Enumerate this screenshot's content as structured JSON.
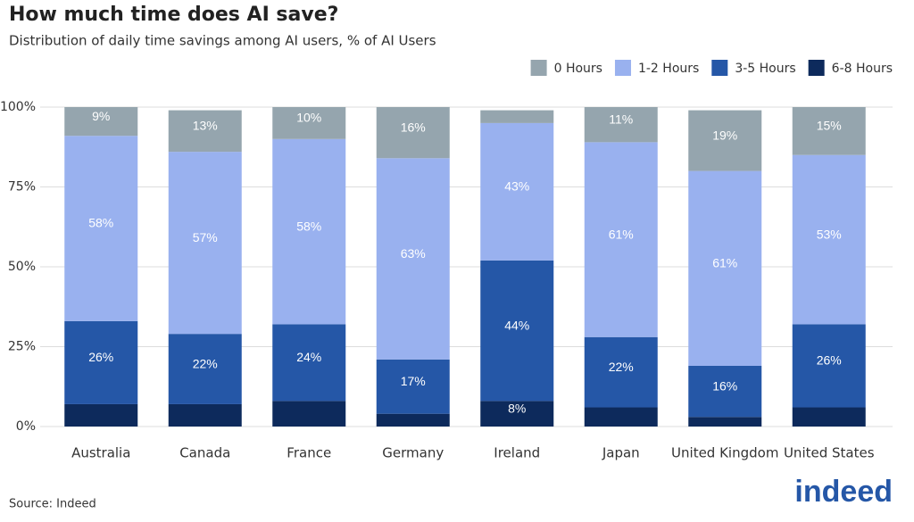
{
  "chart_data": {
    "type": "stacked-bar",
    "title": "How much time does AI save?",
    "subtitle": "Distribution of daily time savings among AI users, % of AI Users",
    "source": "Source: Indeed",
    "logo": "indeed",
    "categories": [
      "Australia",
      "Canada",
      "France",
      "Germany",
      "Ireland",
      "Japan",
      "United Kingdom",
      "United States"
    ],
    "series": [
      {
        "name": "6-8 Hours",
        "color": "#0d2a5c",
        "values": [
          7,
          7,
          8,
          4,
          8,
          6,
          3,
          6
        ],
        "value_labels": [
          null,
          null,
          null,
          null,
          "8%",
          null,
          null,
          null
        ]
      },
      {
        "name": "3-5 Hours",
        "color": "#2557a7",
        "values": [
          26,
          22,
          24,
          17,
          44,
          22,
          16,
          26
        ],
        "value_labels": [
          "26%",
          "22%",
          "24%",
          "17%",
          "44%",
          "22%",
          "16%",
          "26%"
        ]
      },
      {
        "name": "1-2 Hours",
        "color": "#99b1ef",
        "values": [
          58,
          57,
          58,
          63,
          43,
          61,
          61,
          53
        ],
        "value_labels": [
          "58%",
          "57%",
          "58%",
          "63%",
          "43%",
          "61%",
          "61%",
          "53%"
        ]
      },
      {
        "name": "0 Hours",
        "color": "#95a5ae",
        "values": [
          9,
          13,
          10,
          16,
          4,
          11,
          19,
          15
        ],
        "value_labels": [
          "9%",
          "13%",
          "10%",
          "16%",
          null,
          "11%",
          "19%",
          "15%"
        ]
      }
    ],
    "legend_order": [
      3,
      2,
      1,
      0
    ],
    "ylim": [
      0,
      100
    ],
    "yticks": [
      {
        "value": 0,
        "label": "0%"
      },
      {
        "value": 25,
        "label": "25%"
      },
      {
        "value": 50,
        "label": "50%"
      },
      {
        "value": 75,
        "label": "75%"
      },
      {
        "value": 100,
        "label": "100%"
      }
    ],
    "grid": true,
    "legend": "top-right"
  }
}
